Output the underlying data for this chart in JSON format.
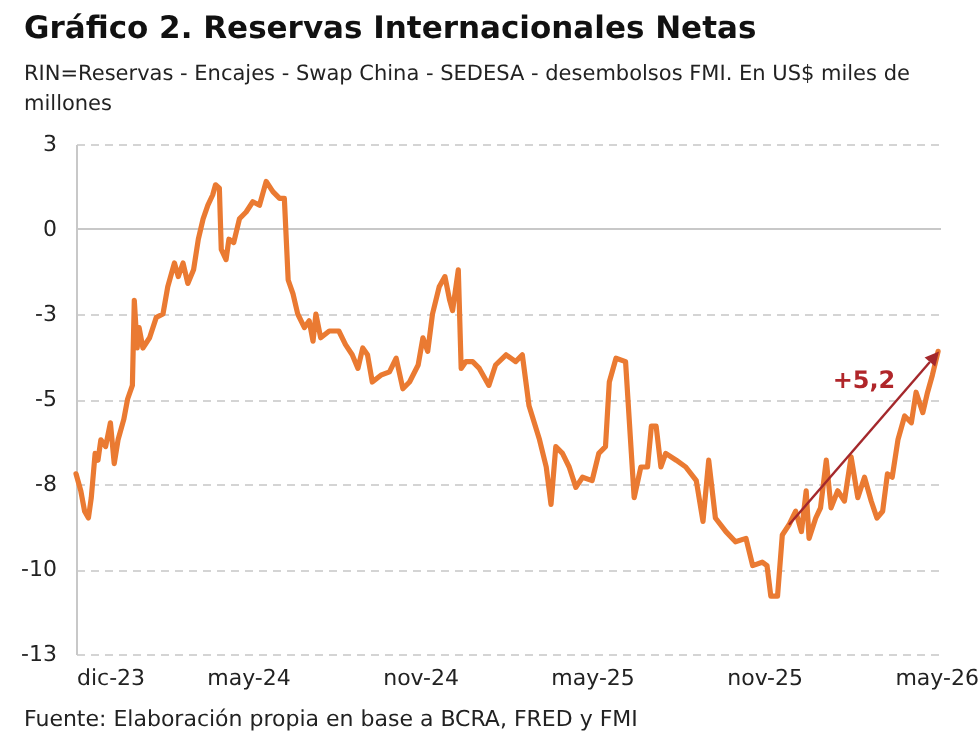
{
  "chart_data": {
    "type": "line",
    "title": "Gráfico 2. Reservas Internacionales Netas",
    "subtitle": "RIN=Reservas - Encajes - Swap China - SEDESA - desembolsos FMI. En US$ miles de millones",
    "x": [
      "2023-12-01",
      "2023-12-06",
      "2023-12-10",
      "2023-12-14",
      "2023-12-17",
      "2023-12-21",
      "2023-12-24",
      "2023-12-27",
      "2024-01-01",
      "2024-01-06",
      "2024-01-10",
      "2024-01-14",
      "2024-01-20",
      "2024-01-24",
      "2024-01-29",
      "2024-01-31",
      "2024-02-03",
      "2024-02-05",
      "2024-02-09",
      "2024-02-16",
      "2024-02-23",
      "2024-03-01",
      "2024-03-06",
      "2024-03-13",
      "2024-03-17",
      "2024-03-22",
      "2024-03-27",
      "2024-04-02",
      "2024-04-07",
      "2024-04-12",
      "2024-04-17",
      "2024-04-22",
      "2024-04-25",
      "2024-04-29",
      "2024-05-01",
      "2024-05-06",
      "2024-05-09",
      "2024-05-14",
      "2024-05-20",
      "2024-05-27",
      "2024-06-03",
      "2024-06-10",
      "2024-06-17",
      "2024-06-24",
      "2024-07-01",
      "2024-07-06",
      "2024-07-10",
      "2024-07-15",
      "2024-07-20",
      "2024-07-27",
      "2024-08-01",
      "2024-08-05",
      "2024-08-08",
      "2024-08-13",
      "2024-08-22",
      "2024-09-01",
      "2024-09-08",
      "2024-09-15",
      "2024-09-21",
      "2024-09-26",
      "2024-10-01",
      "2024-10-06",
      "2024-10-15",
      "2024-10-24",
      "2024-10-31",
      "2024-11-07",
      "2024-11-14",
      "2024-11-23",
      "2024-11-28",
      "2024-12-03",
      "2024-12-08",
      "2024-12-15",
      "2024-12-21",
      "2024-12-26",
      "2024-12-29",
      "2025-01-04",
      "2025-01-07",
      "2025-01-12",
      "2025-01-19",
      "2025-01-26",
      "2025-02-05",
      "2025-02-12",
      "2025-02-23",
      "2025-03-05",
      "2025-03-12",
      "2025-03-19",
      "2025-03-30",
      "2025-04-06",
      "2025-04-11",
      "2025-04-16",
      "2025-04-23",
      "2025-04-30",
      "2025-05-07",
      "2025-05-14",
      "2025-05-24",
      "2025-05-31",
      "2025-06-07",
      "2025-06-11",
      "2025-06-18",
      "2025-06-28",
      "2025-07-07",
      "2025-07-14",
      "2025-07-21",
      "2025-07-25",
      "2025-07-30",
      "2025-08-04",
      "2025-08-09",
      "2025-08-20",
      "2025-08-30",
      "2025-09-10",
      "2025-09-17",
      "2025-09-23",
      "2025-09-30",
      "2025-10-11",
      "2025-10-21",
      "2025-11-01",
      "2025-11-08",
      "2025-11-18",
      "2025-11-23",
      "2025-11-27",
      "2025-12-04",
      "2025-12-09",
      "2025-12-16",
      "2025-12-23",
      "2025-12-29",
      "2026-01-03",
      "2026-01-06",
      "2026-01-13",
      "2026-01-18",
      "2026-01-24",
      "2026-01-29",
      "2026-02-05",
      "2026-02-12",
      "2026-02-19",
      "2026-02-26",
      "2026-03-05",
      "2026-03-12",
      "2026-03-18",
      "2026-03-24",
      "2026-03-29",
      "2026-04-03",
      "2026-04-09",
      "2026-04-16",
      "2026-04-23",
      "2026-04-28",
      "2026-05-05",
      "2026-05-10",
      "2026-05-15",
      "2026-05-21"
    ],
    "series": [
      {
        "color": "#ea7a32",
        "values": [
          -7.2,
          -7.7,
          -8.3,
          -8.5,
          -7.9,
          -6.6,
          -6.8,
          -6.2,
          -6.4,
          -5.7,
          -6.9,
          -6.2,
          -5.6,
          -5.0,
          -4.6,
          -2.1,
          -3.5,
          -2.9,
          -3.5,
          -3.2,
          -2.6,
          -2.5,
          -1.7,
          -1.0,
          -1.4,
          -1.0,
          -1.6,
          -1.2,
          -0.3,
          0.3,
          0.7,
          1.0,
          1.3,
          1.2,
          -0.6,
          -0.9,
          -0.3,
          -0.4,
          0.3,
          0.5,
          0.8,
          0.7,
          1.4,
          1.1,
          0.9,
          0.9,
          -1.5,
          -1.9,
          -2.5,
          -2.9,
          -2.7,
          -3.3,
          -2.5,
          -3.2,
          -3.0,
          -3.0,
          -3.4,
          -3.7,
          -4.1,
          -3.5,
          -3.7,
          -4.5,
          -4.3,
          -4.2,
          -3.8,
          -4.7,
          -4.5,
          -4.0,
          -3.2,
          -3.6,
          -2.5,
          -1.7,
          -1.4,
          -2.1,
          -2.4,
          -1.2,
          -4.1,
          -3.9,
          -3.9,
          -4.1,
          -4.6,
          -4.0,
          -3.7,
          -3.9,
          -3.7,
          -5.2,
          -6.2,
          -7.0,
          -8.1,
          -6.4,
          -6.6,
          -7.0,
          -7.6,
          -7.3,
          -7.4,
          -6.6,
          -6.4,
          -4.5,
          -3.8,
          -3.9,
          -7.9,
          -7.0,
          -7.0,
          -5.8,
          -5.8,
          -7.0,
          -6.6,
          -6.8,
          -7.0,
          -7.4,
          -8.6,
          -6.8,
          -8.5,
          -8.9,
          -9.2,
          -9.1,
          -9.9,
          -9.8,
          -9.9,
          -10.8,
          -10.8,
          -9.0,
          -8.7,
          -8.3,
          -8.9,
          -7.7,
          -9.1,
          -8.5,
          -8.2,
          -6.8,
          -8.2,
          -7.7,
          -8.0,
          -6.7,
          -7.9,
          -7.3,
          -8.0,
          -8.5,
          -8.3,
          -7.2,
          -7.3,
          -6.2,
          -5.5,
          -5.7,
          -4.8,
          -5.4,
          -4.8,
          -4.3,
          -3.6
        ]
      }
    ],
    "xlim": [
      "2023-12-01",
      "2026-05-23"
    ],
    "xticks": [
      {
        "value": "2023-12-01",
        "label": "dic-23"
      },
      {
        "value": "2024-05-29",
        "label": "may-24"
      },
      {
        "value": "2024-11-25",
        "label": "nov-24"
      },
      {
        "value": "2025-05-24",
        "label": "may-25"
      },
      {
        "value": "2025-11-20",
        "label": "nov-25"
      },
      {
        "value": "2026-05-19",
        "label": "may-26"
      }
    ],
    "ylim": [
      -12.5,
      2.5
    ],
    "yticks": [
      {
        "value": 2.5,
        "label": "3"
      },
      {
        "value": 0,
        "label": "0"
      },
      {
        "value": -2.5,
        "label": "-3"
      },
      {
        "value": -5,
        "label": "-5"
      },
      {
        "value": -7.5,
        "label": "-8"
      },
      {
        "value": -10,
        "label": "-10"
      },
      {
        "value": -12.5,
        "label": "-13"
      }
    ],
    "grid": "y",
    "annotations": [
      "+5,2",
      "Fuente: Elaboración propia en base a BCRA, FRED y FMI"
    ]
  }
}
